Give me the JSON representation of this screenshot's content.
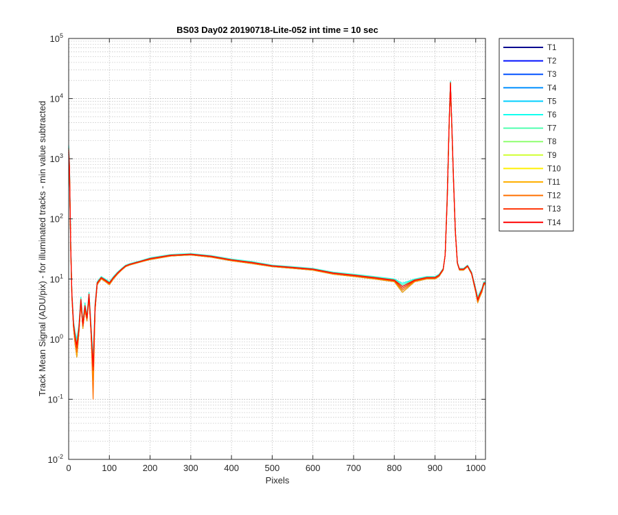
{
  "chart_data": {
    "type": "line",
    "title": "BS03 Day02 20190718-Lite-052 int time = 10 sec",
    "xlabel": "Pixels",
    "ylabel": "Track Mean Signal (ADU/pix) - for illuminated tracks - min value subtracted",
    "x_scale": "linear",
    "y_scale": "log",
    "xlim": [
      0,
      1024
    ],
    "ylim": [
      0.01,
      100000
    ],
    "xticks": [
      0,
      100,
      200,
      300,
      400,
      500,
      600,
      700,
      800,
      900,
      1000
    ],
    "yticks": [
      {
        "base": "10",
        "exp": "-2",
        "value": 0.01
      },
      {
        "base": "10",
        "exp": "-1",
        "value": 0.1
      },
      {
        "base": "10",
        "exp": "0",
        "value": 1
      },
      {
        "base": "10",
        "exp": "1",
        "value": 10
      },
      {
        "base": "10",
        "exp": "2",
        "value": 100
      },
      {
        "base": "10",
        "exp": "3",
        "value": 1000
      },
      {
        "base": "10",
        "exp": "4",
        "value": 10000
      },
      {
        "base": "10",
        "exp": "5",
        "value": 100000
      }
    ],
    "grid": true,
    "minor_grid": true,
    "legend_position": "outside-top-right",
    "x": [
      0,
      2,
      5,
      8,
      12,
      16,
      20,
      25,
      30,
      35,
      40,
      45,
      50,
      55,
      60,
      65,
      70,
      80,
      90,
      100,
      110,
      120,
      130,
      140,
      150,
      175,
      200,
      250,
      300,
      350,
      400,
      450,
      500,
      550,
      600,
      650,
      700,
      750,
      800,
      820,
      850,
      880,
      900,
      910,
      920,
      925,
      930,
      935,
      938,
      941,
      945,
      950,
      955,
      960,
      970,
      980,
      990,
      1000,
      1005,
      1010,
      1015,
      1020,
      1024
    ],
    "series": [
      {
        "name": "T1",
        "color": "#00008f",
        "values": [
          1200,
          600,
          30,
          5,
          1.5,
          0.8,
          0.5,
          1.2,
          4,
          1.5,
          3,
          2,
          5,
          1.2,
          0.2,
          3,
          8,
          10,
          9,
          8,
          10,
          12,
          14,
          16,
          17,
          19,
          21,
          24,
          25,
          23,
          20,
          18,
          16,
          15,
          14,
          12,
          11,
          10,
          9,
          6,
          9,
          10,
          10,
          11,
          14,
          25,
          200,
          4000,
          17000,
          4000,
          500,
          60,
          18,
          14,
          14,
          16,
          12,
          6,
          4,
          5,
          6,
          8,
          8
        ]
      },
      {
        "name": "T2",
        "color": "#0010ff",
        "values": [
          1300,
          650,
          32,
          5.2,
          1.6,
          0.9,
          0.6,
          1.3,
          4.2,
          1.6,
          3.2,
          2.1,
          5.2,
          1.3,
          0.25,
          3.2,
          8.2,
          10.2,
          9.2,
          8.2,
          10.2,
          12.2,
          14.2,
          16.2,
          17.2,
          19.2,
          21.3,
          24.3,
          25.3,
          23.3,
          20.3,
          18.3,
          16.2,
          15.2,
          14.2,
          12.2,
          11.2,
          10.2,
          9.2,
          6.5,
          9.2,
          10.2,
          10.2,
          11.2,
          14.2,
          25,
          210,
          4100,
          17500,
          4100,
          520,
          61,
          18.2,
          14.2,
          14.2,
          16.2,
          12.2,
          6.2,
          4.2,
          5.2,
          6.2,
          8.2,
          8.2
        ]
      },
      {
        "name": "T3",
        "color": "#0050ff",
        "values": [
          1400,
          700,
          34,
          5.4,
          1.7,
          1.0,
          0.7,
          1.4,
          4.4,
          1.7,
          3.4,
          2.2,
          5.4,
          1.4,
          0.3,
          3.4,
          8.4,
          10.4,
          9.4,
          8.4,
          10.4,
          12.4,
          14.4,
          16.4,
          17.4,
          19.4,
          21.6,
          24.6,
          25.6,
          23.6,
          20.6,
          18.6,
          16.4,
          15.4,
          14.4,
          12.4,
          11.4,
          10.4,
          9.4,
          7,
          9.4,
          10.4,
          10.4,
          11.4,
          14.4,
          25,
          220,
          4200,
          18000,
          4200,
          540,
          62,
          18.4,
          14.4,
          14.4,
          16.4,
          12.4,
          6.4,
          4.4,
          5.4,
          6.4,
          8.4,
          8.4
        ]
      },
      {
        "name": "T4",
        "color": "#008fff",
        "values": [
          1500,
          750,
          36,
          5.6,
          1.8,
          1.1,
          0.8,
          1.5,
          4.6,
          1.8,
          3.6,
          2.3,
          5.6,
          1.5,
          0.35,
          3.6,
          8.6,
          10.6,
          9.6,
          8.6,
          10.6,
          12.6,
          14.6,
          16.6,
          17.6,
          19.6,
          21.9,
          24.9,
          25.9,
          23.9,
          20.9,
          18.9,
          16.6,
          15.6,
          14.6,
          12.6,
          11.6,
          10.6,
          9.6,
          7.5,
          9.6,
          10.6,
          10.6,
          11.6,
          14.6,
          25,
          230,
          4300,
          18500,
          4300,
          560,
          63,
          18.6,
          14.6,
          14.6,
          16.6,
          12.6,
          6.6,
          4.6,
          5.6,
          6.6,
          8.6,
          8.6
        ]
      },
      {
        "name": "T5",
        "color": "#00cfff",
        "values": [
          1600,
          800,
          38,
          5.8,
          1.9,
          1.2,
          0.9,
          1.6,
          4.8,
          1.9,
          3.8,
          2.4,
          5.8,
          1.6,
          0.4,
          3.8,
          8.8,
          10.8,
          9.8,
          8.8,
          10.8,
          12.8,
          14.8,
          16.8,
          17.8,
          19.8,
          22.2,
          25.2,
          26.2,
          24.2,
          21.2,
          19.2,
          16.8,
          15.8,
          14.8,
          12.8,
          11.8,
          10.8,
          9.8,
          8,
          9.8,
          10.8,
          10.8,
          11.8,
          14.8,
          25,
          240,
          4400,
          19000,
          4400,
          580,
          64,
          18.8,
          14.8,
          14.8,
          16.8,
          12.8,
          6.8,
          4.8,
          5.8,
          6.8,
          8.8,
          8.8
        ]
      },
      {
        "name": "T6",
        "color": "#10ffef",
        "values": [
          1700,
          850,
          40,
          6.0,
          2.0,
          1.3,
          1.0,
          1.7,
          5.0,
          2.0,
          4.0,
          2.5,
          6.0,
          1.7,
          0.5,
          4.0,
          9.0,
          11.0,
          10.0,
          9.0,
          11.0,
          13.0,
          15.0,
          17.0,
          18.0,
          20.0,
          22.5,
          25.5,
          26.5,
          24.5,
          21.5,
          19.5,
          17.0,
          16.0,
          15.0,
          13.0,
          12.0,
          11.0,
          10.0,
          8.5,
          10.0,
          11.0,
          11.0,
          12.0,
          15.0,
          25,
          250,
          4500,
          19500,
          4500,
          600,
          65,
          19.0,
          15.0,
          15.0,
          17.0,
          13.0,
          7.0,
          5.0,
          6.0,
          7.0,
          9.0,
          9.0
        ]
      },
      {
        "name": "T7",
        "color": "#50ffaf",
        "values": [
          1600,
          800,
          38,
          5.8,
          1.9,
          1.2,
          0.9,
          1.6,
          4.8,
          1.9,
          3.8,
          2.4,
          5.8,
          1.6,
          0.4,
          3.8,
          8.8,
          10.8,
          9.8,
          8.8,
          10.8,
          12.8,
          14.8,
          16.8,
          17.8,
          19.8,
          22.2,
          25.2,
          26.2,
          24.2,
          21.2,
          19.2,
          16.8,
          15.8,
          14.8,
          12.8,
          11.8,
          10.8,
          9.8,
          8,
          9.8,
          10.8,
          10.8,
          11.8,
          14.8,
          25,
          240,
          4400,
          19000,
          4400,
          580,
          64,
          18.8,
          14.8,
          14.8,
          16.8,
          12.8,
          6.8,
          4.8,
          5.8,
          6.8,
          8.8,
          8.8
        ]
      },
      {
        "name": "T8",
        "color": "#8fff70",
        "values": [
          1500,
          750,
          36,
          5.6,
          1.8,
          1.1,
          0.8,
          1.5,
          4.6,
          1.8,
          3.6,
          2.3,
          5.6,
          1.5,
          0.35,
          3.6,
          8.6,
          10.6,
          9.6,
          8.6,
          10.6,
          12.6,
          14.6,
          16.6,
          17.6,
          19.6,
          21.9,
          24.9,
          25.9,
          23.9,
          20.9,
          18.9,
          16.6,
          15.6,
          14.6,
          12.6,
          11.6,
          10.6,
          9.6,
          7.5,
          9.6,
          10.6,
          10.6,
          11.6,
          14.6,
          25,
          230,
          4300,
          18500,
          4300,
          560,
          63,
          18.6,
          14.6,
          14.6,
          16.6,
          12.6,
          6.6,
          4.6,
          5.6,
          6.6,
          8.6,
          8.6
        ]
      },
      {
        "name": "T9",
        "color": "#cfff30",
        "values": [
          1400,
          700,
          34,
          5.4,
          1.7,
          1.0,
          0.7,
          1.4,
          4.4,
          1.7,
          3.4,
          2.2,
          5.4,
          1.4,
          0.3,
          3.4,
          8.4,
          10.4,
          9.4,
          8.4,
          10.4,
          12.4,
          14.4,
          16.4,
          17.4,
          19.4,
          21.6,
          24.6,
          25.6,
          23.6,
          20.6,
          18.6,
          16.4,
          15.4,
          14.4,
          12.4,
          11.4,
          10.4,
          9.4,
          7,
          9.4,
          10.4,
          10.4,
          11.4,
          14.4,
          25,
          220,
          4200,
          18000,
          4200,
          540,
          62,
          18.4,
          14.4,
          14.4,
          16.4,
          12.4,
          6.4,
          4.4,
          5.4,
          6.4,
          8.4,
          8.4
        ]
      },
      {
        "name": "T10",
        "color": "#ffef00",
        "values": [
          1300,
          650,
          32,
          5.2,
          1.6,
          0.9,
          0.6,
          1.3,
          4.2,
          1.6,
          3.2,
          2.1,
          5.2,
          1.3,
          0.25,
          3.2,
          8.2,
          10.2,
          9.2,
          8.2,
          10.2,
          12.2,
          14.2,
          16.2,
          17.2,
          19.2,
          21.3,
          24.3,
          25.3,
          23.3,
          20.3,
          18.3,
          16.2,
          15.2,
          14.2,
          12.2,
          11.2,
          10.2,
          9.2,
          6.5,
          9.2,
          10.2,
          10.2,
          11.2,
          14.2,
          25,
          210,
          4100,
          17500,
          4100,
          520,
          61,
          18.2,
          14.2,
          14.2,
          16.2,
          12.2,
          6.2,
          4.2,
          5.2,
          6.2,
          8.2,
          8.2
        ]
      },
      {
        "name": "T11",
        "color": "#ffaf00",
        "values": [
          1200,
          600,
          30,
          5,
          1.5,
          0.8,
          0.5,
          1.2,
          4,
          1.5,
          3,
          2,
          5,
          1.2,
          0.2,
          3,
          8,
          10,
          9,
          8,
          10,
          12,
          14,
          16,
          17,
          19,
          21,
          24,
          25,
          23,
          20,
          18,
          16,
          15,
          14,
          12,
          11,
          10,
          9,
          6,
          9,
          10,
          10,
          11,
          14,
          25,
          200,
          4000,
          17000,
          4000,
          500,
          60,
          18,
          14,
          14,
          16,
          12,
          6,
          4,
          5,
          6,
          8,
          8
        ]
      },
      {
        "name": "T12",
        "color": "#ff7000",
        "values": [
          1300,
          650,
          32,
          5.2,
          1.6,
          0.9,
          0.6,
          1.3,
          4.2,
          1.6,
          3.2,
          2.1,
          5.2,
          1.3,
          0.1,
          3.2,
          8.2,
          10.2,
          9.2,
          8.2,
          10.2,
          12.2,
          14.2,
          16.2,
          17.2,
          19.2,
          21.3,
          24.3,
          25.3,
          23.3,
          20.3,
          18.3,
          16.2,
          15.2,
          14.2,
          12.2,
          11.2,
          10.2,
          9.2,
          6.5,
          9.2,
          10.2,
          10.2,
          11.2,
          14.2,
          25,
          210,
          4100,
          17500,
          4100,
          520,
          61,
          18.2,
          14.2,
          14.2,
          16.2,
          12.2,
          6.2,
          4.2,
          5.2,
          6.2,
          8.2,
          8.2
        ]
      },
      {
        "name": "T13",
        "color": "#ff3000",
        "values": [
          1400,
          700,
          34,
          5.4,
          1.7,
          1.0,
          0.7,
          1.4,
          4.4,
          1.7,
          3.4,
          2.2,
          5.4,
          1.4,
          0.3,
          3.4,
          8.4,
          10.4,
          9.4,
          8.4,
          10.4,
          12.4,
          14.4,
          16.4,
          17.4,
          19.4,
          21.6,
          24.6,
          25.6,
          23.6,
          20.6,
          18.6,
          16.4,
          15.4,
          14.4,
          12.4,
          11.4,
          10.4,
          9.4,
          7,
          9.4,
          10.4,
          10.4,
          11.4,
          14.4,
          25,
          220,
          4200,
          18000,
          4200,
          540,
          62,
          18.4,
          14.4,
          14.4,
          16.4,
          12.4,
          6.4,
          4.4,
          5.4,
          6.4,
          8.4,
          8.4
        ]
      },
      {
        "name": "T14",
        "color": "#ff0000",
        "values": [
          1500,
          750,
          36,
          5.6,
          1.8,
          1.1,
          0.8,
          1.5,
          4.6,
          1.8,
          3.6,
          2.3,
          5.6,
          1.5,
          0.35,
          3.6,
          8.6,
          10.6,
          9.6,
          8.6,
          10.6,
          12.6,
          14.6,
          16.6,
          17.6,
          19.6,
          21.9,
          24.9,
          25.9,
          23.9,
          20.9,
          18.9,
          16.6,
          15.6,
          14.6,
          12.6,
          11.6,
          10.6,
          9.6,
          7.5,
          9.6,
          10.6,
          10.6,
          11.6,
          14.6,
          25,
          230,
          4300,
          18500,
          4300,
          560,
          63,
          18.6,
          14.6,
          14.6,
          16.6,
          12.6,
          6.6,
          4.6,
          5.6,
          6.6,
          8.6,
          8.6
        ]
      }
    ]
  }
}
